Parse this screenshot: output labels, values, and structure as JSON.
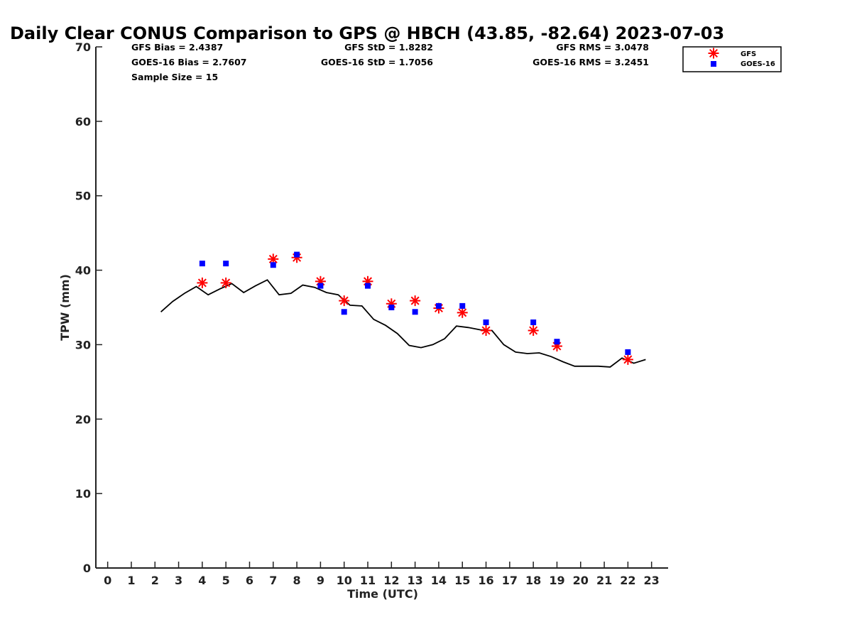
{
  "chart_data": {
    "type": "scatter",
    "title": "Daily Clear CONUS Comparison to GPS @ HBCH (43.85, -82.64) 2023-07-03",
    "xlabel": "Time (UTC)",
    "ylabel": "TPW (mm)",
    "xlim": [
      -0.5,
      23.7
    ],
    "ylim": [
      0,
      70
    ],
    "xticks": [
      0,
      1,
      2,
      3,
      4,
      5,
      6,
      7,
      8,
      9,
      10,
      11,
      12,
      13,
      14,
      15,
      16,
      17,
      18,
      19,
      20,
      21,
      22,
      23
    ],
    "yticks": [
      0,
      10,
      20,
      30,
      40,
      50,
      60,
      70
    ],
    "grid": false,
    "legend_position": "top-right",
    "stats": {
      "gfs_bias": "GFS Bias = 2.4387",
      "goes_bias": "GOES-16 Bias = 2.7607",
      "sample_size": "Sample Size = 15",
      "gfs_std": "GFS StD = 1.8282",
      "goes_std": "GOES-16 StD = 1.7056",
      "gfs_rms": "GFS RMS = 3.0478",
      "goes_rms": "GOES-16 RMS = 3.2451"
    },
    "series": [
      {
        "name": "GFS",
        "marker": "asterisk",
        "color": "#ff0000",
        "x": [
          4,
          5,
          7,
          8,
          9,
          10,
          11,
          12,
          13,
          14,
          15,
          16,
          18,
          19,
          22
        ],
        "y": [
          38.3,
          38.3,
          41.5,
          41.7,
          38.5,
          35.9,
          38.5,
          35.5,
          35.9,
          34.9,
          34.3,
          31.9,
          31.9,
          29.8,
          28.0
        ]
      },
      {
        "name": "GOES-16",
        "marker": "square",
        "color": "#0000ff",
        "x": [
          4,
          5,
          7,
          8,
          9,
          10,
          11,
          12,
          13,
          14,
          15,
          16,
          18,
          19,
          22
        ],
        "y": [
          40.9,
          40.9,
          40.7,
          42.1,
          37.9,
          34.4,
          37.9,
          35.0,
          34.4,
          35.2,
          35.2,
          33.0,
          33.0,
          30.4,
          29.0
        ]
      },
      {
        "marker": "line",
        "color": "#000000",
        "x": [
          2.25,
          2.75,
          3.25,
          3.75,
          4.25,
          4.75,
          5.25,
          5.75,
          6.25,
          6.75,
          7.25,
          7.75,
          8.25,
          8.75,
          9.25,
          9.75,
          10.25,
          10.75,
          11.25,
          11.75,
          12.25,
          12.75,
          13.25,
          13.75,
          14.25,
          14.75,
          15.25,
          15.75,
          16.25,
          16.75,
          17.25,
          17.75,
          18.25,
          18.75,
          19.25,
          19.75,
          20.25,
          20.75,
          21.25,
          21.75,
          22.25,
          22.75
        ],
        "y": [
          34.4,
          35.8,
          36.9,
          37.8,
          36.7,
          37.5,
          38.2,
          37.0,
          37.9,
          38.7,
          36.7,
          36.9,
          38.0,
          37.7,
          37.0,
          36.7,
          35.3,
          35.2,
          33.4,
          32.6,
          31.5,
          29.9,
          29.6,
          30.0,
          30.8,
          32.5,
          32.3,
          32.0,
          31.9,
          30.0,
          29.0,
          28.8,
          28.9,
          28.4,
          27.7,
          27.1,
          27.1,
          27.1,
          27.0,
          28.2,
          27.5,
          28.0
        ]
      }
    ]
  }
}
